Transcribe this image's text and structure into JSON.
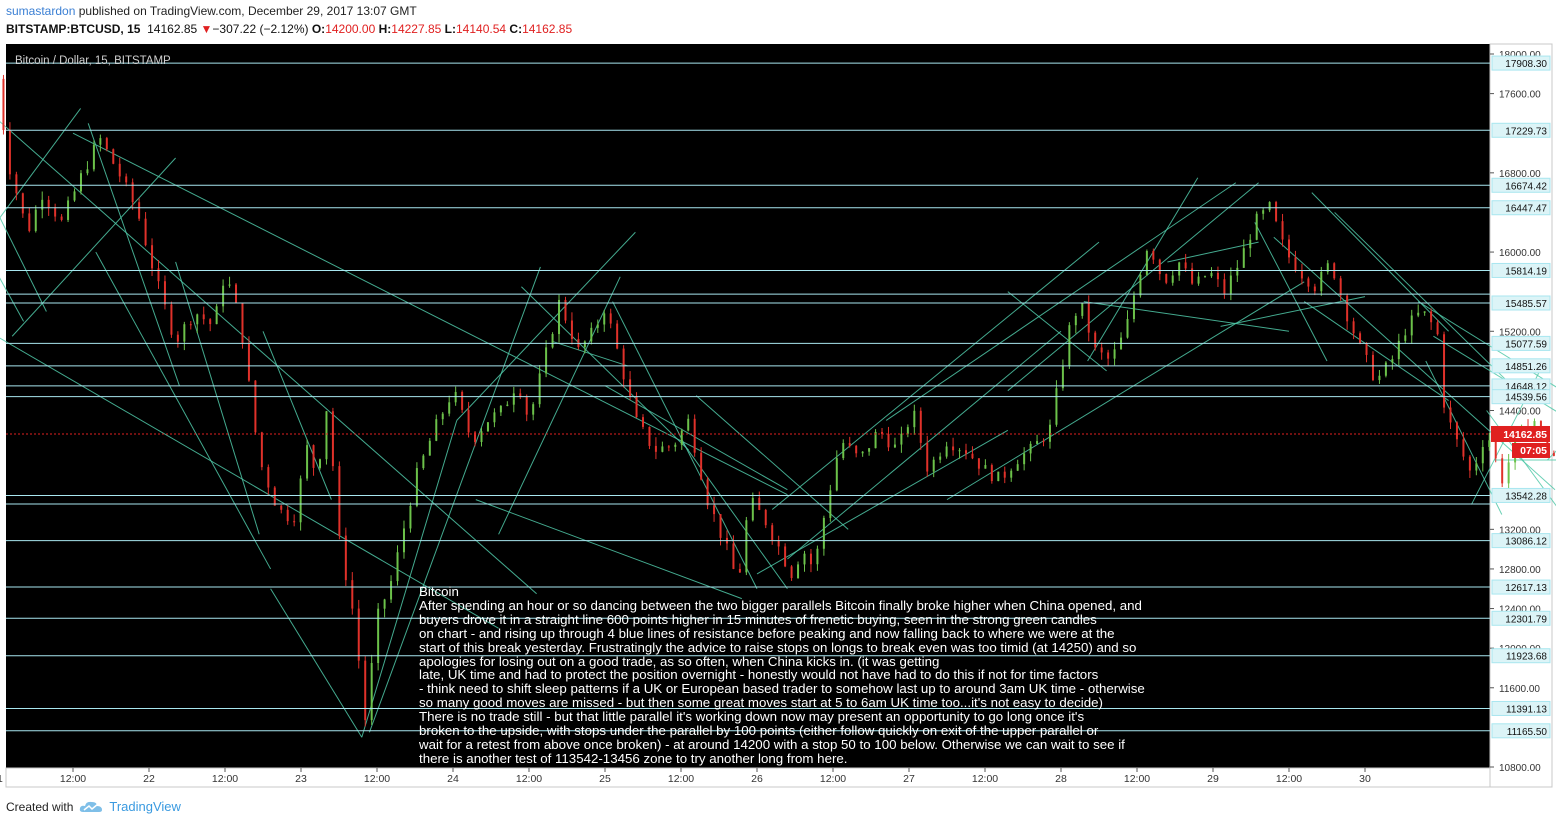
{
  "header": {
    "publisher": "sumastardon",
    "published_text": "published on TradingView.com, December 29, 2017 13:07 GMT",
    "symbol": "BITSTAMP:BTCUSD, 15",
    "last": "14162.85",
    "change": "−307.22 (−2.12%)",
    "o_label": "O:",
    "o_value": "14200.00",
    "h_label": "H:",
    "h_value": "14227.85",
    "l_label": "L:",
    "l_value": "14140.54",
    "c_label": "C:",
    "c_value": "14162.85"
  },
  "footer": {
    "created_with": "Created with",
    "brand": "TradingView"
  },
  "chart_data": {
    "type": "line",
    "title": "Bitcoin / Dollar, 15, BITSTAMP",
    "colors": {
      "background": "#000000",
      "bull": "#6cc24a",
      "bear": "#e0312a",
      "level_lines": "#a8e6ef",
      "trend_lines": "#50c8a8",
      "current_price": "#e02020"
    },
    "ylim": [
      10800,
      18000
    ],
    "y_ticks": [
      10800,
      11600,
      12000,
      12400,
      12800,
      13200,
      14400,
      15200,
      16000,
      16800,
      17600,
      18000
    ],
    "y_tick_labels": [
      "10800.00",
      "11600.00",
      "12000.00",
      "12400.00",
      "12800.00",
      "13200.00",
      "14400.00",
      "15200.00",
      "16000.00",
      "16800.00",
      "17600.00",
      "18000.00"
    ],
    "x_ticks": [
      "21",
      "12:00",
      "22",
      "12:00",
      "23",
      "12:00",
      "24",
      "12:00",
      "25",
      "12:00",
      "26",
      "12:00",
      "27",
      "12:00",
      "28",
      "12:00",
      "29",
      "12:00",
      "30"
    ],
    "horizontal_levels": [
      17908.3,
      17229.73,
      16674.42,
      16447.47,
      15814.19,
      15574.8,
      15485.57,
      15077.59,
      14851.26,
      14648.12,
      14539.56,
      13542.28,
      13456.0,
      13086.12,
      12617.13,
      12301.79,
      11923.68,
      11391.13,
      11165.5
    ],
    "level_labels": [
      "17908.30",
      "17229.73",
      "16674.42",
      "16447.47",
      "15814.19",
      "",
      "15485.57",
      "15077.59",
      "14851.26",
      "14648.12",
      "14539.56",
      "13542.28",
      "",
      "13086.12",
      "12617.13",
      "12301.79",
      "11923.68",
      "11391.13",
      "11165.50"
    ],
    "current_price": 14162.85,
    "current_price_label": "14162.85",
    "countdown_label": "07:05",
    "price_path": [
      [
        0,
        17750
      ],
      [
        0.15,
        16900
      ],
      [
        0.4,
        16200
      ],
      [
        0.6,
        16600
      ],
      [
        0.85,
        16300
      ],
      [
        1.1,
        16750
      ],
      [
        1.35,
        17150
      ],
      [
        1.6,
        16800
      ],
      [
        1.85,
        16400
      ],
      [
        2.1,
        15700
      ],
      [
        2.35,
        15100
      ],
      [
        2.6,
        15400
      ],
      [
        2.85,
        15250
      ],
      [
        3.0,
        15800
      ],
      [
        3.2,
        15300
      ],
      [
        3.45,
        13900
      ],
      [
        3.7,
        13400
      ],
      [
        3.9,
        13300
      ],
      [
        4.1,
        14100
      ],
      [
        4.2,
        13700
      ],
      [
        4.35,
        14500
      ],
      [
        4.5,
        13100
      ],
      [
        4.7,
        12300
      ],
      [
        4.85,
        11250
      ],
      [
        5.0,
        12300
      ],
      [
        5.2,
        12700
      ],
      [
        5.5,
        13700
      ],
      [
        5.75,
        14200
      ],
      [
        6.0,
        14600
      ],
      [
        6.25,
        14100
      ],
      [
        6.45,
        14300
      ],
      [
        6.65,
        14400
      ],
      [
        6.85,
        14700
      ],
      [
        7.0,
        14300
      ],
      [
        7.2,
        14900
      ],
      [
        7.4,
        15500
      ],
      [
        7.65,
        15000
      ],
      [
        7.85,
        15200
      ],
      [
        8.0,
        15450
      ],
      [
        8.2,
        14900
      ],
      [
        8.4,
        14300
      ],
      [
        8.65,
        14000
      ],
      [
        8.9,
        14050
      ],
      [
        9.1,
        14300
      ],
      [
        9.35,
        13500
      ],
      [
        9.6,
        13000
      ],
      [
        9.75,
        12650
      ],
      [
        9.9,
        13500
      ],
      [
        10.1,
        13300
      ],
      [
        10.3,
        13000
      ],
      [
        10.45,
        12750
      ],
      [
        10.6,
        13000
      ],
      [
        10.75,
        12800
      ],
      [
        10.9,
        13400
      ],
      [
        11.1,
        14100
      ],
      [
        11.35,
        13900
      ],
      [
        11.6,
        14200
      ],
      [
        11.85,
        14000
      ],
      [
        12.05,
        14400
      ],
      [
        12.25,
        13800
      ],
      [
        12.5,
        14100
      ],
      [
        12.75,
        14000
      ],
      [
        13.0,
        13800
      ],
      [
        13.2,
        13700
      ],
      [
        13.4,
        13900
      ],
      [
        13.6,
        14000
      ],
      [
        13.85,
        14200
      ],
      [
        14.0,
        14800
      ],
      [
        14.1,
        15200
      ],
      [
        14.25,
        15500
      ],
      [
        14.45,
        15000
      ],
      [
        14.65,
        14900
      ],
      [
        14.85,
        15200
      ],
      [
        15.0,
        15700
      ],
      [
        15.15,
        16100
      ],
      [
        15.35,
        15700
      ],
      [
        15.55,
        15900
      ],
      [
        15.75,
        15650
      ],
      [
        15.95,
        15800
      ],
      [
        16.15,
        15600
      ],
      [
        16.35,
        15900
      ],
      [
        16.55,
        16300
      ],
      [
        16.75,
        16450
      ],
      [
        16.95,
        16000
      ],
      [
        17.15,
        15800
      ],
      [
        17.35,
        15650
      ],
      [
        17.55,
        15900
      ],
      [
        17.75,
        15400
      ],
      [
        17.95,
        15000
      ],
      [
        18.15,
        14700
      ],
      [
        18.35,
        14900
      ],
      [
        18.55,
        15250
      ],
      [
        18.75,
        15400
      ],
      [
        18.95,
        15200
      ],
      [
        19.05,
        14400
      ],
      [
        19.2,
        14100
      ],
      [
        19.4,
        13750
      ],
      [
        19.6,
        14200
      ],
      [
        19.8,
        13700
      ],
      [
        20.0,
        14100
      ],
      [
        20.2,
        14350
      ],
      [
        20.4,
        14000
      ],
      [
        20.55,
        13900
      ],
      [
        20.75,
        13950
      ],
      [
        20.95,
        14150
      ],
      [
        21.15,
        14000
      ],
      [
        21.35,
        14350
      ],
      [
        21.5,
        14400
      ],
      [
        21.65,
        14950
      ],
      [
        21.85,
        15000
      ],
      [
        22.0,
        14800
      ],
      [
        22.2,
        14550
      ],
      [
        22.4,
        14300
      ],
      [
        22.55,
        14162.85
      ]
    ]
  },
  "annotation": {
    "lines": [
      "Bitcoin",
      "After spending an hour or so dancing between the two bigger parallels Bitcoin finally broke higher when China opened, and",
      "buyers drove it in a straight line 600 points higher in 15 minutes of frenetic buying, seen in the strong green candles",
      "on chart - and rising up through 4 blue lines of resistance before peaking and now falling back to where we were at the",
      "start of this break yesterday. Frustratingly the advice to raise stops on longs to break even was too timid (at 14250) and so",
      "apologies for losing out on a good trade, as so often, when China kicks in. (it was getting",
      "late, UK time and had to protect the position overnight - honestly would not have had to do this if not for time factors",
      "- think need to shift sleep patterns if a UK or European based trader to somehow last up to around 3am UK time - otherwise",
      "so many good moves are missed - but then some great moves start at 5 to 6am UK time too...it's not easy to decide)",
      "There is no trade still - but that little parallel it's working down now may present an opportunity to go long once it's",
      "broken to the upside, with stops under the parallel by 100 points (either follow quickly on exit of the upper parallel or",
      "wait for a retest from above once broken) - at around 14200 with a stop 50 to 100 below. Otherwise we can wait to see if",
      "there is another test of 113542-13456 zone to try another long from here."
    ]
  }
}
